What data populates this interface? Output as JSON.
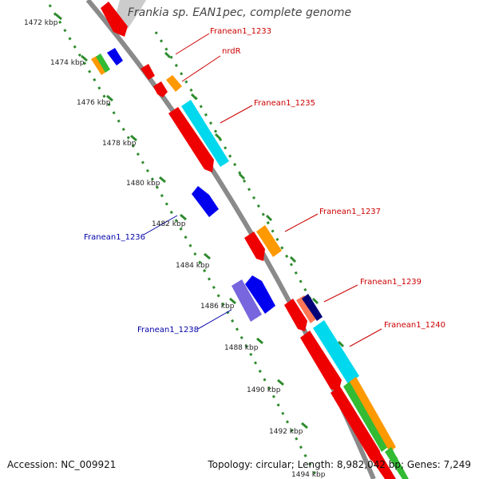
{
  "header": {
    "title": "Frankia sp. EAN1pec, complete genome"
  },
  "footer": {
    "accession": "Accession: NC_009921",
    "summary": "Topology: circular; Length: 8,982,042 bp; Genes: 7,249"
  },
  "colors": {
    "backbone": "#8a8a8a",
    "tick": "#2e8b2e",
    "red": "#ee0000",
    "orange": "#ff9900",
    "cyan": "#00d8ee",
    "blue": "#0000ee",
    "violet": "#7766dd",
    "navy": "#000077",
    "salmon": "#ff7755",
    "green": "#33bb33",
    "gray": "#cccccc",
    "label_red": "#cc0000",
    "label_blue": "#0000aa"
  },
  "ruler": {
    "unit": "kbp",
    "ticks": [
      "1472 kbp",
      "1474 kbp",
      "1476 kbp",
      "1478 kbp",
      "1480 kbp",
      "1482 kbp",
      "1484 kbp",
      "1486 kbp",
      "1488 kbp",
      "1490 kbp",
      "1492 kbp",
      "1494 kbp"
    ]
  },
  "gene_labels": {
    "g1233": "Franean1_1233",
    "nrdR": "nrdR",
    "g1235": "Franean1_1235",
    "g1236": "Franean1_1236",
    "g1237": "Franean1_1237",
    "g1238": "Franean1_1238",
    "g1239": "Franean1_1239",
    "g1240": "Franean1_1240"
  }
}
